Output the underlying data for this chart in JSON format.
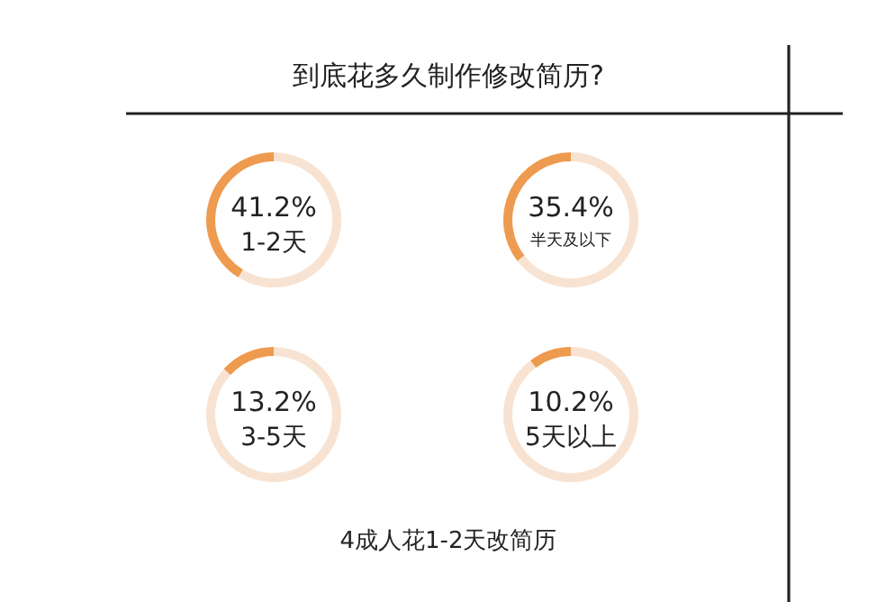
{
  "chart_data": [
    {
      "type": "donut",
      "title": "到底花多久制作修改简历?",
      "categories": [
        "1-2天",
        null
      ],
      "values": [
        41.2,
        58.8
      ],
      "value_labels": [
        "41.2%",
        null
      ],
      "colors": [
        "#ee9a4f",
        "#f8e3d2"
      ]
    },
    {
      "type": "donut",
      "categories": [
        "半天及以下",
        null
      ],
      "values": [
        35.4,
        64.6
      ],
      "value_labels": [
        "35.4%",
        null
      ],
      "colors": [
        "#ee9a4f",
        "#f8e3d2"
      ]
    },
    {
      "type": "donut",
      "categories": [
        "3-5天",
        null
      ],
      "values": [
        13.2,
        86.8
      ],
      "value_labels": [
        "13.2%",
        null
      ],
      "colors": [
        "#ee9a4f",
        "#f8e3d2"
      ]
    },
    {
      "type": "donut",
      "categories": [
        "5天以上",
        null
      ],
      "values": [
        10.2,
        89.8
      ],
      "value_labels": [
        "10.2%",
        null
      ],
      "colors": [
        "#ee9a4f",
        "#f8e3d2"
      ],
      "annotations": [
        "4成人花1-2天改简历"
      ]
    }
  ]
}
